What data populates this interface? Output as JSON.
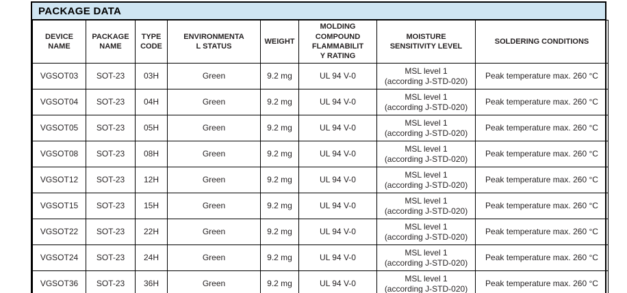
{
  "title": "PACKAGE DATA",
  "colors": {
    "title_bg": "#cfe5f2",
    "border": "#000000",
    "text": "#231f20"
  },
  "table": {
    "headers": [
      "DEVICE\nNAME",
      "PACKAGE\nNAME",
      "TYPE\nCODE",
      "ENVIRONMENTA\nL STATUS",
      "WEIGHT",
      "MOLDING\nCOMPOUND\nFLAMMABILIT\nY RATING",
      "MOISTURE\nSENSITIVITY LEVEL",
      "SOLDERING CONDITIONS"
    ],
    "rows": [
      [
        "VGSOT03",
        "SOT-23",
        "03H",
        "Green",
        "9.2 mg",
        "UL 94 V-0",
        "MSL level 1\n(according J-STD-020)",
        "Peak temperature max. 260 °C"
      ],
      [
        "VGSOT04",
        "SOT-23",
        "04H",
        "Green",
        "9.2 mg",
        "UL 94 V-0",
        "MSL level 1\n(according J-STD-020)",
        "Peak temperature max. 260 °C"
      ],
      [
        "VGSOT05",
        "SOT-23",
        "05H",
        "Green",
        "9.2 mg",
        "UL 94 V-0",
        "MSL level 1\n(according J-STD-020)",
        "Peak temperature max. 260 °C"
      ],
      [
        "VGSOT08",
        "SOT-23",
        "08H",
        "Green",
        "9.2 mg",
        "UL 94 V-0",
        "MSL level 1\n(according J-STD-020)",
        "Peak temperature max. 260 °C"
      ],
      [
        "VGSOT12",
        "SOT-23",
        "12H",
        "Green",
        "9.2 mg",
        "UL 94 V-0",
        "MSL level 1\n(according J-STD-020)",
        "Peak temperature max. 260 °C"
      ],
      [
        "VGSOT15",
        "SOT-23",
        "15H",
        "Green",
        "9.2 mg",
        "UL 94 V-0",
        "MSL level 1\n(according J-STD-020)",
        "Peak temperature max. 260 °C"
      ],
      [
        "VGSOT22",
        "SOT-23",
        "22H",
        "Green",
        "9.2 mg",
        "UL 94 V-0",
        "MSL level 1\n(according J-STD-020)",
        "Peak temperature max. 260 °C"
      ],
      [
        "VGSOT24",
        "SOT-23",
        "24H",
        "Green",
        "9.2 mg",
        "UL 94 V-0",
        "MSL level 1\n(according J-STD-020)",
        "Peak temperature max. 260 °C"
      ],
      [
        "VGSOT36",
        "SOT-23",
        "36H",
        "Green",
        "9.2 mg",
        "UL 94 V-0",
        "MSL level 1\n(according J-STD-020)",
        "Peak temperature max. 260 °C"
      ]
    ]
  }
}
